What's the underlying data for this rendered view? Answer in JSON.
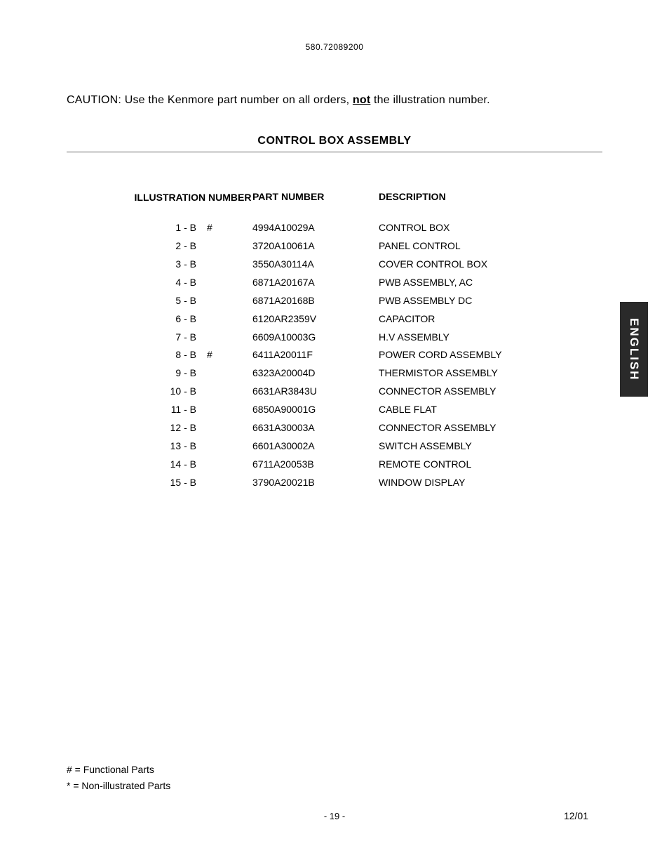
{
  "header": {
    "model": "580.72089200"
  },
  "caution": {
    "prefix": "CAUTION: Use the Kenmore part number on all orders, ",
    "notWord": "not",
    "suffix": " the illustration number."
  },
  "section": {
    "title": "CONTROL BOX ASSEMBLY"
  },
  "tableHeaders": {
    "illustration": "ILLUSTRATION NUMBER",
    "partNumber": "PART NUMBER",
    "description": "DESCRIPTION"
  },
  "rows": [
    {
      "illus": "1 - B",
      "mark": "#",
      "part": "4994A10029A",
      "desc": "CONTROL BOX"
    },
    {
      "illus": "2 - B",
      "mark": "",
      "part": "3720A10061A",
      "desc": "PANEL CONTROL"
    },
    {
      "illus": "3 - B",
      "mark": "",
      "part": "3550A30114A",
      "desc": "COVER CONTROL BOX"
    },
    {
      "illus": "4 - B",
      "mark": "",
      "part": "6871A20167A",
      "desc": "PWB ASSEMBLY, AC"
    },
    {
      "illus": "5 - B",
      "mark": "",
      "part": "6871A20168B",
      "desc": "PWB ASSEMBLY DC"
    },
    {
      "illus": "6 - B",
      "mark": "",
      "part": "6120AR2359V",
      "desc": "CAPACITOR"
    },
    {
      "illus": "7 - B",
      "mark": "",
      "part": "6609A10003G",
      "desc": "H.V ASSEMBLY"
    },
    {
      "illus": "8 - B",
      "mark": "#",
      "part": "6411A20011F",
      "desc": "POWER CORD ASSEMBLY"
    },
    {
      "illus": "9 - B",
      "mark": "",
      "part": "6323A20004D",
      "desc": "THERMISTOR ASSEMBLY"
    },
    {
      "illus": "10 - B",
      "mark": "",
      "part": "6631AR3843U",
      "desc": "CONNECTOR ASSEMBLY"
    },
    {
      "illus": "11 - B",
      "mark": "",
      "part": "6850A90001G",
      "desc": "CABLE FLAT"
    },
    {
      "illus": "12 - B",
      "mark": "",
      "part": "6631A30003A",
      "desc": "CONNECTOR ASSEMBLY"
    },
    {
      "illus": "13 - B",
      "mark": "",
      "part": "6601A30002A",
      "desc": "SWITCH ASSEMBLY"
    },
    {
      "illus": "14 - B",
      "mark": "",
      "part": "6711A20053B",
      "desc": "REMOTE CONTROL"
    },
    {
      "illus": "15 - B",
      "mark": "",
      "part": "3790A20021B",
      "desc": "WINDOW DISPLAY"
    }
  ],
  "sideTab": {
    "text": "ENGLISH"
  },
  "legend": {
    "functional": "# = Functional Parts",
    "nonIllustrated": "* = Non-illustrated Parts"
  },
  "footer": {
    "page": "- 19 -",
    "date": "12/01"
  }
}
